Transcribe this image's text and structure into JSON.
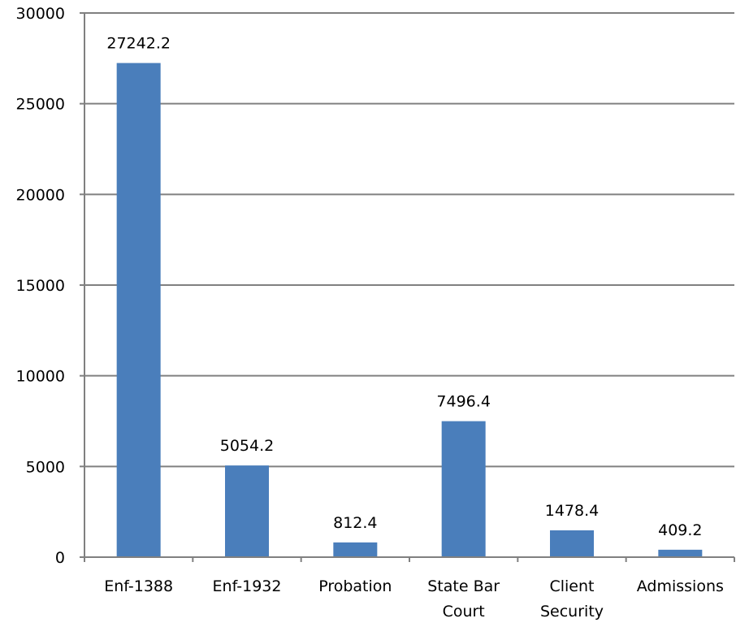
{
  "chart_data": {
    "type": "bar",
    "categories": [
      "Enf-1388",
      "Enf-1932",
      "Probation",
      "State Bar Court",
      "Client Security",
      "Admissions"
    ],
    "category_lines": [
      [
        "Enf-1388"
      ],
      [
        "Enf-1932"
      ],
      [
        "Probation"
      ],
      [
        "State Bar",
        "Court"
      ],
      [
        "Client",
        "Security"
      ],
      [
        "Admissions"
      ]
    ],
    "values": [
      27242.2,
      5054.2,
      812.4,
      7496.4,
      1478.4,
      409.2
    ],
    "value_labels": [
      "27242.2",
      "5054.2",
      "812.4",
      "7496.4",
      "1478.4",
      "409.2"
    ],
    "ylim": [
      0,
      30000
    ],
    "yticks": [
      0,
      5000,
      10000,
      15000,
      20000,
      25000,
      30000
    ],
    "ytick_labels": [
      "0",
      "5000",
      "10000",
      "15000",
      "20000",
      "25000",
      "30000"
    ],
    "grid": true,
    "legend": false,
    "title": "",
    "xlabel": "",
    "ylabel": "",
    "colors": {
      "bar": "#4a7ebb",
      "grid": "#808080",
      "axis": "#808080"
    }
  }
}
